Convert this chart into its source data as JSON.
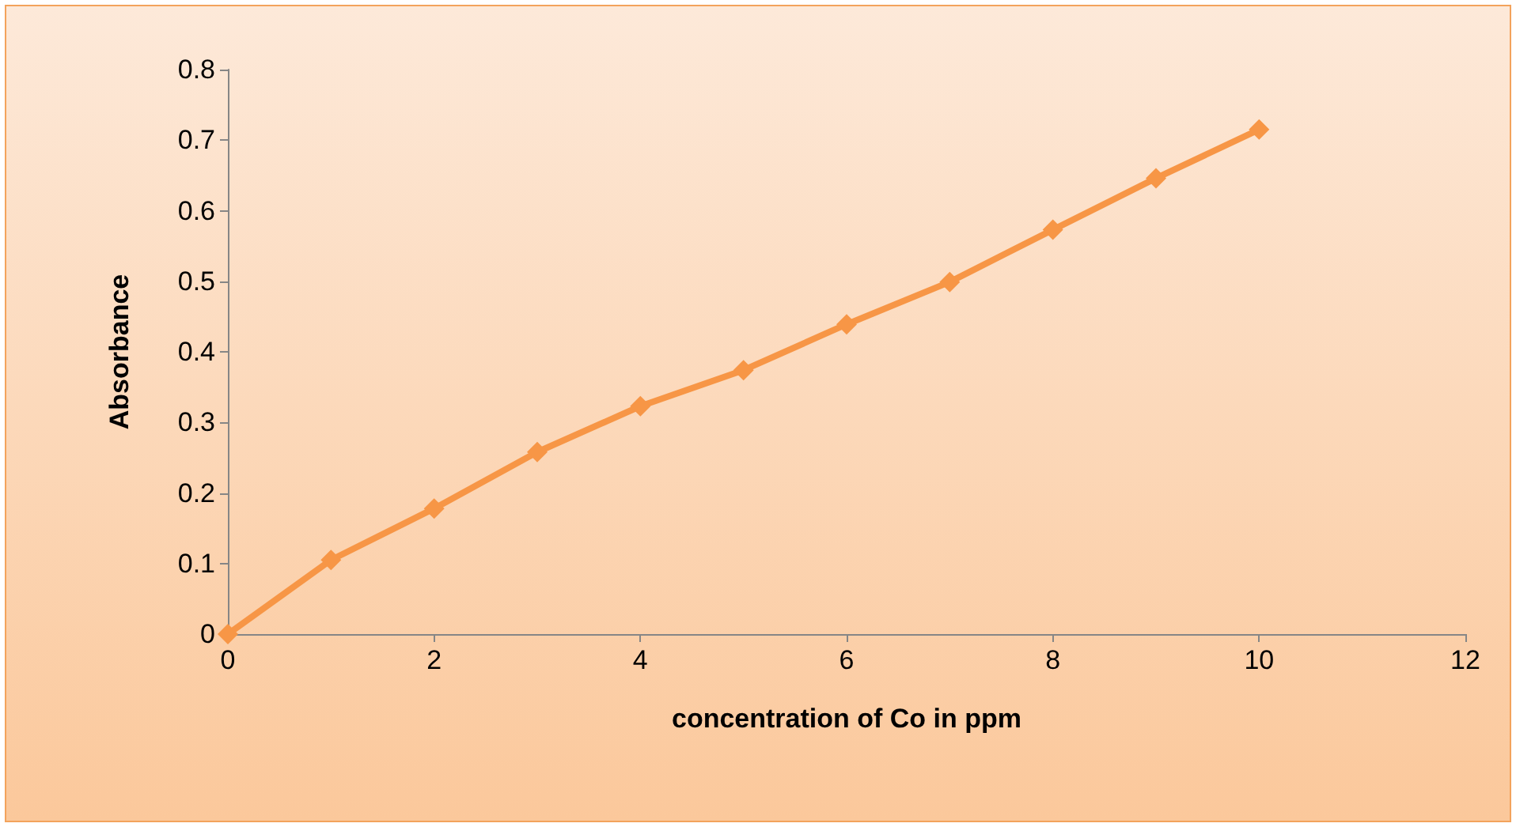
{
  "chart_data": {
    "type": "line",
    "xlabel": "concentration of Co in ppm",
    "ylabel": "Absorbance",
    "x": [
      0,
      1,
      2,
      3,
      4,
      5,
      6,
      7,
      8,
      9,
      10
    ],
    "series": [
      {
        "color": "#f79646",
        "values": [
          0,
          0.105,
          0.178,
          0.258,
          0.323,
          0.374,
          0.439,
          0.499,
          0.573,
          0.646,
          0.715
        ]
      }
    ],
    "xlim": [
      0,
      12
    ],
    "xticks": [
      0,
      2,
      4,
      6,
      8,
      10,
      12
    ],
    "ylim": [
      0,
      0.8
    ],
    "yticks": [
      0,
      0.1,
      0.2,
      0.3,
      0.4,
      0.5,
      0.6,
      0.7,
      0.8
    ],
    "grid": false,
    "marker": "diamond",
    "line_style": "solid"
  }
}
